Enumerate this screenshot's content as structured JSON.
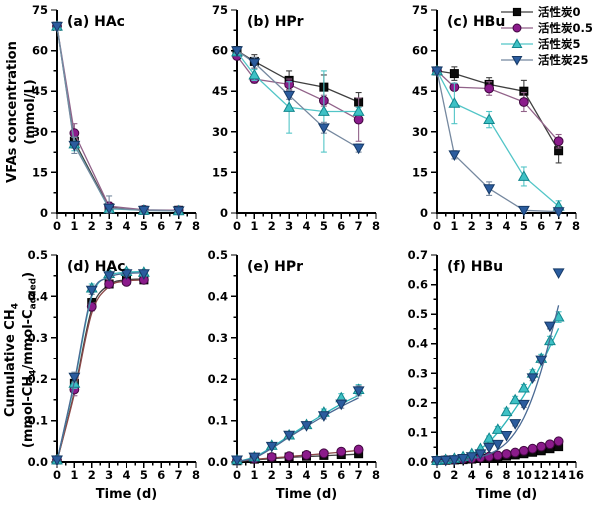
{
  "figure": {
    "background": "#ffffff",
    "row1_y_title": {
      "line1": "VFAs concentration",
      "line2": "(mmol/L)"
    },
    "row2_y_title": {
      "line1_parts": [
        {
          "t": "Cumulative CH"
        },
        {
          "t": "4",
          "sub": true
        }
      ],
      "line2_parts": [
        {
          "t": "(mmol-CH"
        },
        {
          "t": "4",
          "sub": true
        },
        {
          "t": "/mmol-C"
        },
        {
          "t": "added",
          "sub": true
        },
        {
          "t": ")"
        }
      ]
    },
    "x_title": "Time (d)"
  },
  "legend": {
    "panel": "c",
    "position": "top-right",
    "items": [
      {
        "series": "ac0",
        "label": "活性炭0"
      },
      {
        "series": "ac05",
        "label": "活性炭0.5"
      },
      {
        "series": "ac5",
        "label": "活性炭5"
      },
      {
        "series": "ac25",
        "label": "活性炭25"
      }
    ]
  },
  "series_styles": {
    "ac0": {
      "name": "活性炭0",
      "marker": "square",
      "fill": "#0b0b0b",
      "edge": "#000000",
      "line": "#3f3f3f",
      "fit_line": "#3f3f3f"
    },
    "ac05": {
      "name": "活性炭0.5",
      "marker": "circle",
      "fill": "#8b1b8b",
      "edge": "#40073f",
      "line": "#916289",
      "fit_line": "#8b4848"
    },
    "ac5": {
      "name": "活性炭5",
      "marker": "triangle-up",
      "fill": "#3ec1c5",
      "edge": "#11868d",
      "line": "#52c5c7",
      "fit_line": "#2fb5ba"
    },
    "ac25": {
      "name": "活性炭25",
      "marker": "triangle-down",
      "fill": "#2b5c9e",
      "edge": "#163a67",
      "line": "#75889f",
      "fit_line": "#4a6a94"
    }
  },
  "chart_data": {
    "type": "line",
    "grid": false,
    "panels": [
      {
        "id": "a",
        "row": 1,
        "label": "(a) HAc",
        "has_x_title": false,
        "xlim": [
          0,
          8
        ],
        "x_major": 1,
        "x_minor": 0.5,
        "ylim": [
          0,
          75
        ],
        "y_major": 15,
        "y_minor": 7.5,
        "y_decimals": 0,
        "x": [
          0,
          1,
          3,
          5,
          7
        ],
        "series": [
          {
            "key": "ac0",
            "y": [
              69,
              26.5,
              2.0,
              1.0,
              1.0
            ],
            "err": [
              1.5,
              2.5,
              1.0,
              0.8,
              0.8
            ]
          },
          {
            "key": "ac05",
            "y": [
              69,
              29.5,
              2.5,
              1.2,
              1.0
            ],
            "err": [
              1.5,
              3.5,
              1.5,
              0.8,
              0.8
            ]
          },
          {
            "key": "ac5",
            "y": [
              69,
              25.5,
              1.5,
              1.0,
              0.8
            ],
            "err": [
              1.5,
              2.5,
              1.0,
              0.8,
              0.8
            ]
          },
          {
            "key": "ac25",
            "y": [
              69,
              25.0,
              1.8,
              1.0,
              0.8
            ],
            "err": [
              1.5,
              3.0,
              4.5,
              0.8,
              0.8
            ]
          }
        ]
      },
      {
        "id": "b",
        "row": 1,
        "label": "(b) HPr",
        "has_x_title": false,
        "xlim": [
          0,
          8
        ],
        "x_major": 1,
        "x_minor": 0.5,
        "ylim": [
          0,
          75
        ],
        "y_major": 15,
        "y_minor": 7.5,
        "y_decimals": 0,
        "x": [
          0,
          1,
          3,
          5,
          7
        ],
        "series": [
          {
            "key": "ac0",
            "y": [
              60.0,
              56.0,
              49.0,
              46.5,
              41.0
            ],
            "err": [
              1.5,
              2.5,
              3.5,
              4.5,
              3.5
            ]
          },
          {
            "key": "ac05",
            "y": [
              58.0,
              49.5,
              47.5,
              41.5,
              34.5
            ],
            "err": [
              1.0,
              1.5,
              2.0,
              2.0,
              8.0
            ]
          },
          {
            "key": "ac5",
            "y": [
              59.5,
              51.0,
              39.0,
              37.5,
              37.5
            ],
            "err": [
              1.0,
              2.0,
              9.5,
              15.0,
              1.5
            ]
          },
          {
            "key": "ac25",
            "y": [
              60.0,
              55.5,
              43.5,
              31.5,
              24.0
            ],
            "err": [
              1.0,
              2.0,
              1.5,
              2.0,
              1.5
            ]
          }
        ]
      },
      {
        "id": "c",
        "row": 1,
        "label": "(c) HBu",
        "has_x_title": false,
        "xlim": [
          0,
          8
        ],
        "x_major": 1,
        "x_minor": 0.5,
        "ylim": [
          0,
          75
        ],
        "y_major": 15,
        "y_minor": 7.5,
        "y_decimals": 0,
        "x": [
          0,
          1,
          3,
          5,
          7
        ],
        "series": [
          {
            "key": "ac0",
            "y": [
              52.5,
              51.5,
              47.5,
              45.0,
              23.0
            ],
            "err": [
              1.0,
              2.5,
              2.5,
              4.0,
              4.5
            ]
          },
          {
            "key": "ac05",
            "y": [
              52.5,
              46.5,
              46.0,
              41.0,
              26.5
            ],
            "err": [
              1.0,
              1.0,
              2.5,
              3.5,
              2.5
            ]
          },
          {
            "key": "ac5",
            "y": [
              52.5,
              40.5,
              34.5,
              13.5,
              2.5
            ],
            "err": [
              1.0,
              7.5,
              3.0,
              3.5,
              2.0
            ]
          },
          {
            "key": "ac25",
            "y": [
              52.5,
              21.5,
              9.0,
              1.0,
              0.5
            ],
            "err": [
              1.0,
              1.5,
              2.5,
              0.8,
              0.5
            ]
          }
        ]
      },
      {
        "id": "d",
        "row": 2,
        "label": "(d) HAc",
        "has_x_title": true,
        "xlim": [
          0,
          8
        ],
        "x_major": 1,
        "x_minor": 0.5,
        "ylim": [
          0,
          0.5
        ],
        "y_major": 0.1,
        "y_minor": 0.05,
        "y_decimals": 1,
        "x": [
          0,
          1,
          2,
          3,
          4,
          5
        ],
        "series": [
          {
            "key": "ac0",
            "y": [
              0.005,
              0.19,
              0.385,
              0.43,
              0.44,
              0.44
            ],
            "err": [
              0,
              0.015,
              0.01,
              0.008,
              0.006,
              0.006
            ],
            "fit": [
              0.002,
              0.17,
              0.37,
              0.428,
              0.44,
              0.442
            ]
          },
          {
            "key": "ac05",
            "y": [
              0.005,
              0.175,
              0.375,
              0.43,
              0.435,
              0.44
            ],
            "err": [
              0,
              0.015,
              0.01,
              0.008,
              0.006,
              0.006
            ],
            "fit": [
              0.002,
              0.165,
              0.36,
              0.424,
              0.437,
              0.44
            ]
          },
          {
            "key": "ac5",
            "y": [
              0.005,
              0.19,
              0.42,
              0.455,
              0.46,
              0.458
            ],
            "err": [
              0,
              0.012,
              0.01,
              0.006,
              0.006,
              0.006
            ],
            "fit": [
              0.002,
              0.19,
              0.4,
              0.449,
              0.458,
              0.46
            ]
          },
          {
            "key": "ac25",
            "y": [
              0.005,
              0.205,
              0.415,
              0.45,
              0.455,
              0.455
            ],
            "err": [
              0,
              0.012,
              0.01,
              0.006,
              0.006,
              0.006
            ],
            "fit": [
              0.002,
              0.195,
              0.405,
              0.446,
              0.455,
              0.457
            ]
          }
        ]
      },
      {
        "id": "e",
        "row": 2,
        "label": "(e) HPr",
        "has_x_title": true,
        "xlim": [
          0,
          8
        ],
        "x_major": 1,
        "x_minor": 0.5,
        "ylim": [
          0,
          0.5
        ],
        "y_major": 0.1,
        "y_minor": 0.05,
        "y_decimals": 1,
        "x": [
          0,
          1,
          2,
          3,
          4,
          5,
          6,
          7
        ],
        "series": [
          {
            "key": "ac0",
            "y": [
              0.003,
              0.007,
              0.01,
              0.012,
              0.014,
              0.016,
              0.018,
              0.02
            ],
            "err": [
              0,
              0,
              0,
              0,
              0,
              0,
              0,
              0.004
            ],
            "fit": [
              0.001,
              0.005,
              0.008,
              0.011,
              0.013,
              0.015,
              0.017,
              0.019
            ]
          },
          {
            "key": "ac05",
            "y": [
              0.004,
              0.008,
              0.012,
              0.014,
              0.017,
              0.021,
              0.025,
              0.03
            ],
            "err": [
              0,
              0,
              0,
              0,
              0,
              0,
              0,
              0.005
            ],
            "fit": [
              0.001,
              0.006,
              0.01,
              0.013,
              0.017,
              0.02,
              0.024,
              0.028
            ]
          },
          {
            "key": "ac5",
            "y": [
              0.005,
              0.012,
              0.04,
              0.065,
              0.09,
              0.12,
              0.155,
              0.175
            ],
            "err": [
              0,
              0,
              0.004,
              0.005,
              0.006,
              0.008,
              0.01,
              0.012
            ],
            "fit": [
              0.001,
              0.012,
              0.036,
              0.063,
              0.09,
              0.116,
              0.14,
              0.161
            ]
          },
          {
            "key": "ac25",
            "y": [
              0.005,
              0.012,
              0.038,
              0.065,
              0.088,
              0.112,
              0.14,
              0.172
            ],
            "err": [
              0,
              0,
              0.004,
              0.005,
              0.006,
              0.008,
              0.01,
              0.012
            ],
            "fit": [
              0.001,
              0.01,
              0.033,
              0.06,
              0.086,
              0.111,
              0.134,
              0.155
            ]
          }
        ]
      },
      {
        "id": "f",
        "row": 2,
        "label": "(f) HBu",
        "has_x_title": true,
        "xlim": [
          0,
          16
        ],
        "x_major": 2,
        "x_minor": 1,
        "ylim": [
          0,
          0.7
        ],
        "y_major": 0.1,
        "y_minor": 0.05,
        "y_decimals": 1,
        "x": [
          0,
          1,
          2,
          3,
          4,
          5,
          6,
          7,
          8,
          9,
          10,
          11,
          12,
          13,
          14
        ],
        "series": [
          {
            "key": "ac0",
            "y": [
              0.005,
              0.006,
              0.007,
              0.008,
              0.01,
              0.012,
              0.014,
              0.017,
              0.02,
              0.024,
              0.028,
              0.033,
              0.038,
              0.045,
              0.052
            ],
            "err": [
              0,
              0,
              0,
              0,
              0,
              0,
              0,
              0,
              0,
              0,
              0,
              0,
              0,
              0,
              0.005
            ],
            "fit": [
              0.002,
              0.004,
              0.006,
              0.008,
              0.01,
              0.013,
              0.016,
              0.019,
              0.022,
              0.026,
              0.03,
              0.035,
              0.04,
              0.045,
              0.051
            ]
          },
          {
            "key": "ac05",
            "y": [
              0.005,
              0.007,
              0.008,
              0.01,
              0.012,
              0.015,
              0.018,
              0.022,
              0.027,
              0.032,
              0.038,
              0.045,
              0.052,
              0.06,
              0.07
            ],
            "err": [
              0,
              0,
              0,
              0,
              0,
              0,
              0,
              0,
              0,
              0,
              0,
              0,
              0,
              0,
              0.006
            ],
            "fit": [
              0.002,
              0.004,
              0.007,
              0.009,
              0.012,
              0.016,
              0.02,
              0.024,
              0.029,
              0.034,
              0.04,
              0.047,
              0.054,
              0.061,
              0.069
            ]
          },
          {
            "key": "ac5",
            "y": [
              0.005,
              0.008,
              0.012,
              0.018,
              0.028,
              0.045,
              0.08,
              0.11,
              0.17,
              0.21,
              0.25,
              0.3,
              0.35,
              0.41,
              0.49
            ],
            "err": [
              0,
              0,
              0,
              0,
              0,
              0,
              0.008,
              0.01,
              0.012,
              0.012,
              0.012,
              0.012,
              0.014,
              0.015,
              0.018
            ],
            "fit": [
              0.002,
              0.006,
              0.011,
              0.018,
              0.028,
              0.044,
              0.068,
              0.1,
              0.138,
              0.18,
              0.225,
              0.275,
              0.33,
              0.39,
              0.452
            ]
          },
          {
            "key": "ac25",
            "y": [
              0.005,
              0.006,
              0.008,
              0.012,
              0.018,
              0.028,
              0.05,
              0.06,
              0.09,
              0.13,
              0.195,
              0.285,
              0.345,
              0.46,
              0.64
            ],
            "err": [
              0,
              0,
              0,
              0,
              0,
              0,
              0,
              0,
              0,
              0.008,
              0.01,
              0.01,
              0.01,
              0.01,
              0
            ],
            "fit": [
              0.001,
              0.002,
              0.004,
              0.007,
              0.011,
              0.017,
              0.027,
              0.042,
              0.065,
              0.1,
              0.15,
              0.22,
              0.31,
              0.415,
              0.53
            ]
          }
        ]
      }
    ]
  }
}
